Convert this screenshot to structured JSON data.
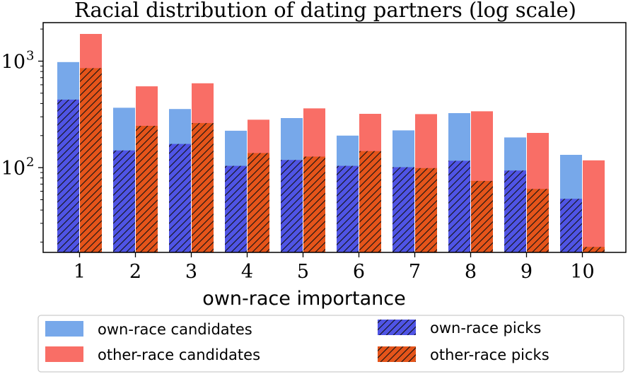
{
  "chart_data": {
    "type": "bar",
    "title": "Racial distribution of dating partners (log scale)",
    "xlabel": "own-race importance",
    "ylabel": "",
    "yscale": "log",
    "ylim": [
      16,
      2300
    ],
    "ytick_labels": [
      {
        "value": 100,
        "base": "10",
        "exp": "2"
      },
      {
        "value": 1000,
        "base": "10",
        "exp": "3"
      }
    ],
    "categories": [
      "1",
      "2",
      "3",
      "4",
      "5",
      "6",
      "7",
      "8",
      "9",
      "10"
    ],
    "series": [
      {
        "name": "own-race candidates",
        "group": "own",
        "style": "solid",
        "color": "#77a8ea",
        "values": [
          980,
          365,
          355,
          222,
          292,
          200,
          224,
          325,
          192,
          132
        ]
      },
      {
        "name": "other-race candidates",
        "group": "other",
        "style": "solid",
        "color": "#f96e66",
        "values": [
          1800,
          580,
          620,
          282,
          360,
          320,
          318,
          338,
          212,
          117
        ]
      },
      {
        "name": "own-race picks",
        "group": "own",
        "style": "hatched",
        "color": "#4f54e5",
        "values": [
          435,
          145,
          167,
          104,
          118,
          104,
          101,
          116,
          94,
          51
        ]
      },
      {
        "name": "other-race picks",
        "group": "other",
        "style": "hatched",
        "color": "#e5541a",
        "values": [
          860,
          247,
          262,
          137,
          127,
          143,
          99,
          75,
          63,
          18
        ]
      }
    ],
    "legend": {
      "placement": "bottom",
      "order": [
        "own-race candidates",
        "own-race picks",
        "other-race candidates",
        "other-race picks"
      ]
    },
    "grid": false
  }
}
